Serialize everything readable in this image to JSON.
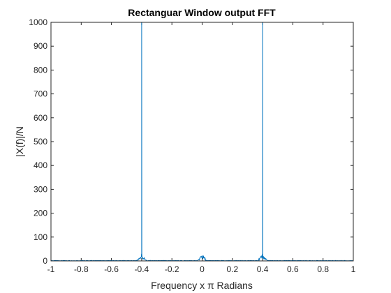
{
  "chart_data": {
    "type": "line",
    "title": "Rectanguar Window output FFT",
    "xlabel": "Frequency x π Radians",
    "ylabel": "|X(f)|/N",
    "xlim": [
      -1,
      1
    ],
    "ylim": [
      0,
      1000
    ],
    "xticks": [
      -1,
      -0.8,
      -0.6,
      -0.4,
      -0.2,
      0,
      0.2,
      0.4,
      0.6,
      0.8,
      1
    ],
    "xtick_labels": [
      "-1",
      "-0.8",
      "-0.6",
      "-0.4",
      "-0.2",
      "0",
      "0.2",
      "0.4",
      "0.6",
      "0.8",
      "1"
    ],
    "yticks": [
      0,
      100,
      200,
      300,
      400,
      500,
      600,
      700,
      800,
      900,
      1000
    ],
    "ytick_labels": [
      "0",
      "100",
      "200",
      "300",
      "400",
      "500",
      "600",
      "700",
      "800",
      "900",
      "1000"
    ],
    "grid": false,
    "line_color": "#0072bd",
    "series": [
      {
        "peaks": [
          {
            "x": -0.4,
            "y": 1000
          },
          {
            "x": 0.4,
            "y": 1000
          }
        ],
        "sidelobe_clusters": [
          {
            "center": -0.4,
            "halfwidth": 0.035,
            "max": 28
          },
          {
            "center": 0.0,
            "halfwidth": 0.03,
            "max": 32
          },
          {
            "center": 0.4,
            "halfwidth": 0.035,
            "max": 28
          }
        ],
        "noise_floor": 2
      }
    ]
  }
}
